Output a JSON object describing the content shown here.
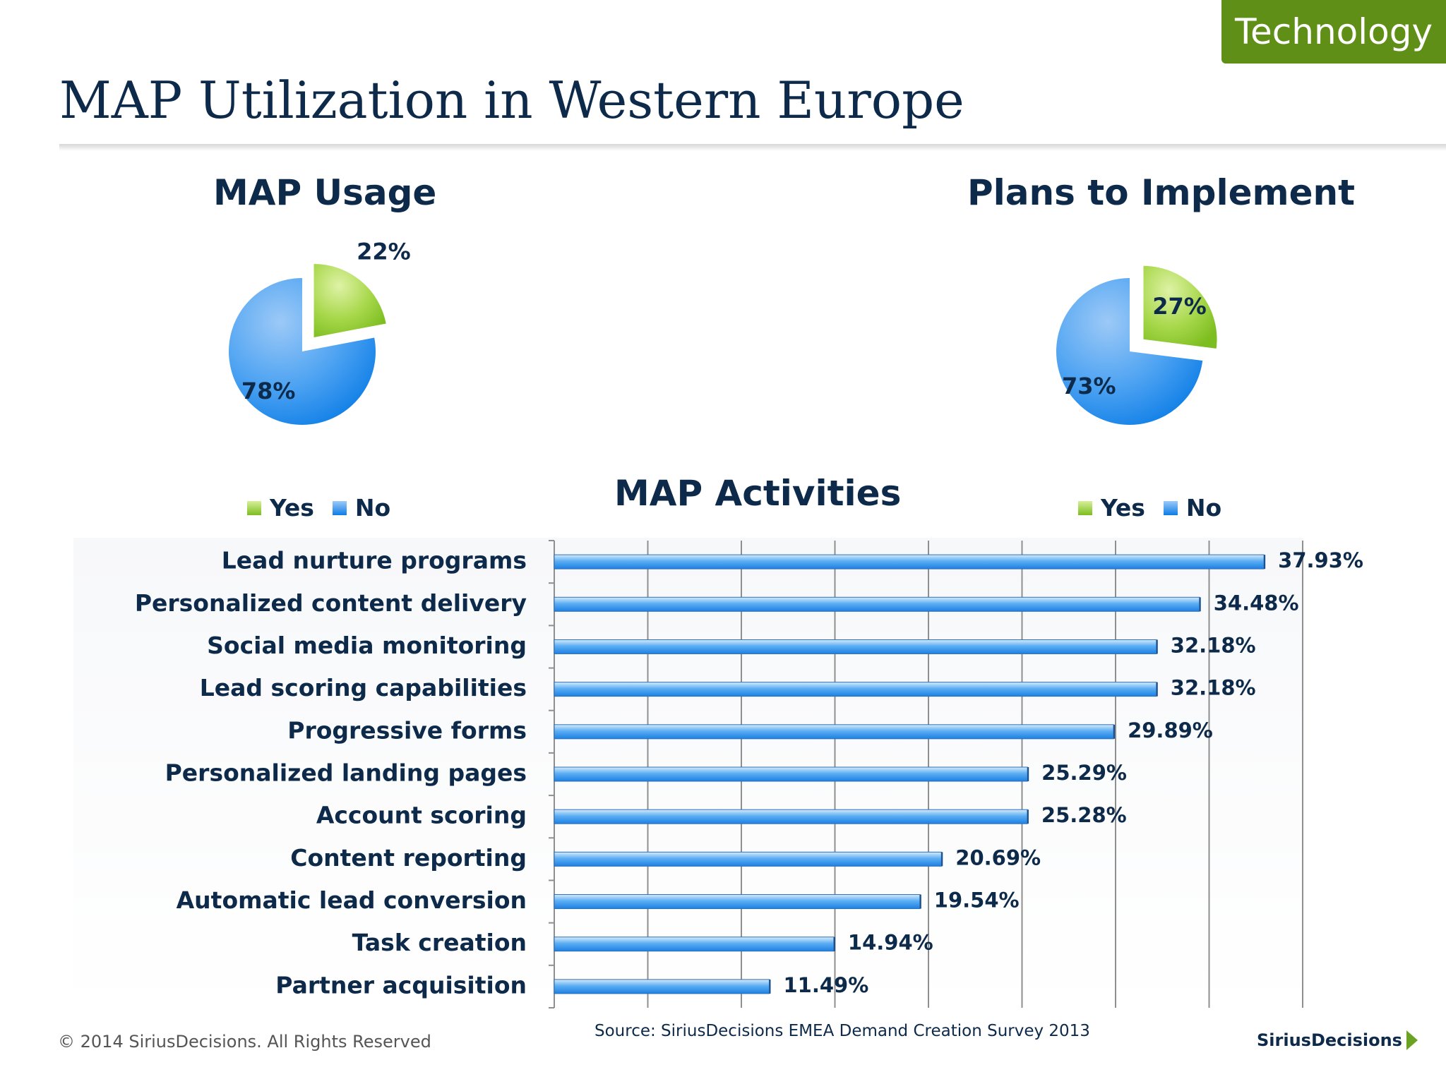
{
  "header": {
    "category_tab": "Technology",
    "title": "MAP Utilization in Western Europe"
  },
  "colors": {
    "yes_green": "#8cc63f",
    "no_blue": "#1e88f0",
    "title_navy": "#0d2a4a",
    "tab_green": "#5f8f17"
  },
  "chart_data": [
    {
      "type": "pie",
      "title": "MAP Usage",
      "labels": [
        "Yes",
        "No"
      ],
      "values": [
        22,
        78
      ],
      "value_labels": [
        "22%",
        "78%"
      ],
      "exploded": "Yes",
      "legend_placement": "bottom"
    },
    {
      "type": "pie",
      "title": "Plans to Implement",
      "labels": [
        "Yes",
        "No"
      ],
      "values": [
        27,
        73
      ],
      "value_labels": [
        "27%",
        "73%"
      ],
      "exploded": "Yes",
      "legend_placement": "bottom"
    },
    {
      "type": "bar",
      "orientation": "horizontal",
      "title": "MAP Activities",
      "categories": [
        "Lead nurture programs",
        "Personalized content delivery",
        "Social media monitoring",
        "Lead scoring capabilities",
        "Progressive forms",
        "Personalized landing pages",
        "Account scoring",
        "Content reporting",
        "Automatic lead conversion",
        "Task creation",
        "Partner acquisition"
      ],
      "values": [
        37.93,
        34.48,
        32.18,
        32.18,
        29.89,
        25.29,
        25.28,
        20.69,
        19.54,
        14.94,
        11.49
      ],
      "value_labels": [
        "37.93%",
        "34.48%",
        "32.18%",
        "32.18%",
        "29.89%",
        "25.29%",
        "25.28%",
        "20.69%",
        "19.54%",
        "14.94%",
        "11.49%"
      ],
      "xlim": [
        0,
        40
      ],
      "grid": true,
      "legend": false
    }
  ],
  "footer": {
    "copyright": "© 2014 SiriusDecisions. All Rights Reserved",
    "source": "Source: SiriusDecisions EMEA Demand Creation Survey 2013",
    "logo_text": "SiriusDecisions"
  }
}
